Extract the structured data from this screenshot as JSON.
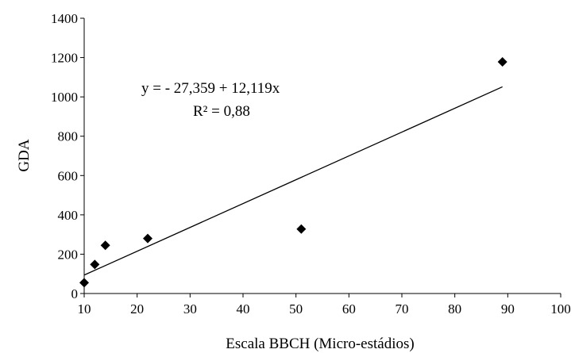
{
  "chart_data": {
    "type": "scatter",
    "xlabel": "Escala BBCH  (Micro-estádios)",
    "ylabel": "GDA",
    "xlim": [
      10,
      100
    ],
    "ylim": [
      0,
      1400
    ],
    "x_ticks": [
      "10",
      "20",
      "30",
      "40",
      "50",
      "60",
      "70",
      "80",
      "90",
      "100"
    ],
    "y_ticks": [
      "0",
      "200",
      "400",
      "600",
      "800",
      "1000",
      "1200",
      "1400"
    ],
    "grid": false,
    "legend": "none",
    "marker": "diamond",
    "marker_color": "#000000",
    "series": [
      {
        "points": [
          {
            "x": 10,
            "y": 55
          },
          {
            "x": 12,
            "y": 148
          },
          {
            "x": 14,
            "y": 245
          },
          {
            "x": 22,
            "y": 280
          },
          {
            "x": 51,
            "y": 328
          },
          {
            "x": 89,
            "y": 1178
          }
        ]
      }
    ],
    "trendline": {
      "type": "linear",
      "intercept": -27.359,
      "slope": 12.119,
      "x_range": [
        10,
        89
      ],
      "color": "#000000"
    },
    "annotations": {
      "equation": "y =  - 27,359 + 12,119x",
      "r_squared": "R² = 0,88"
    }
  }
}
